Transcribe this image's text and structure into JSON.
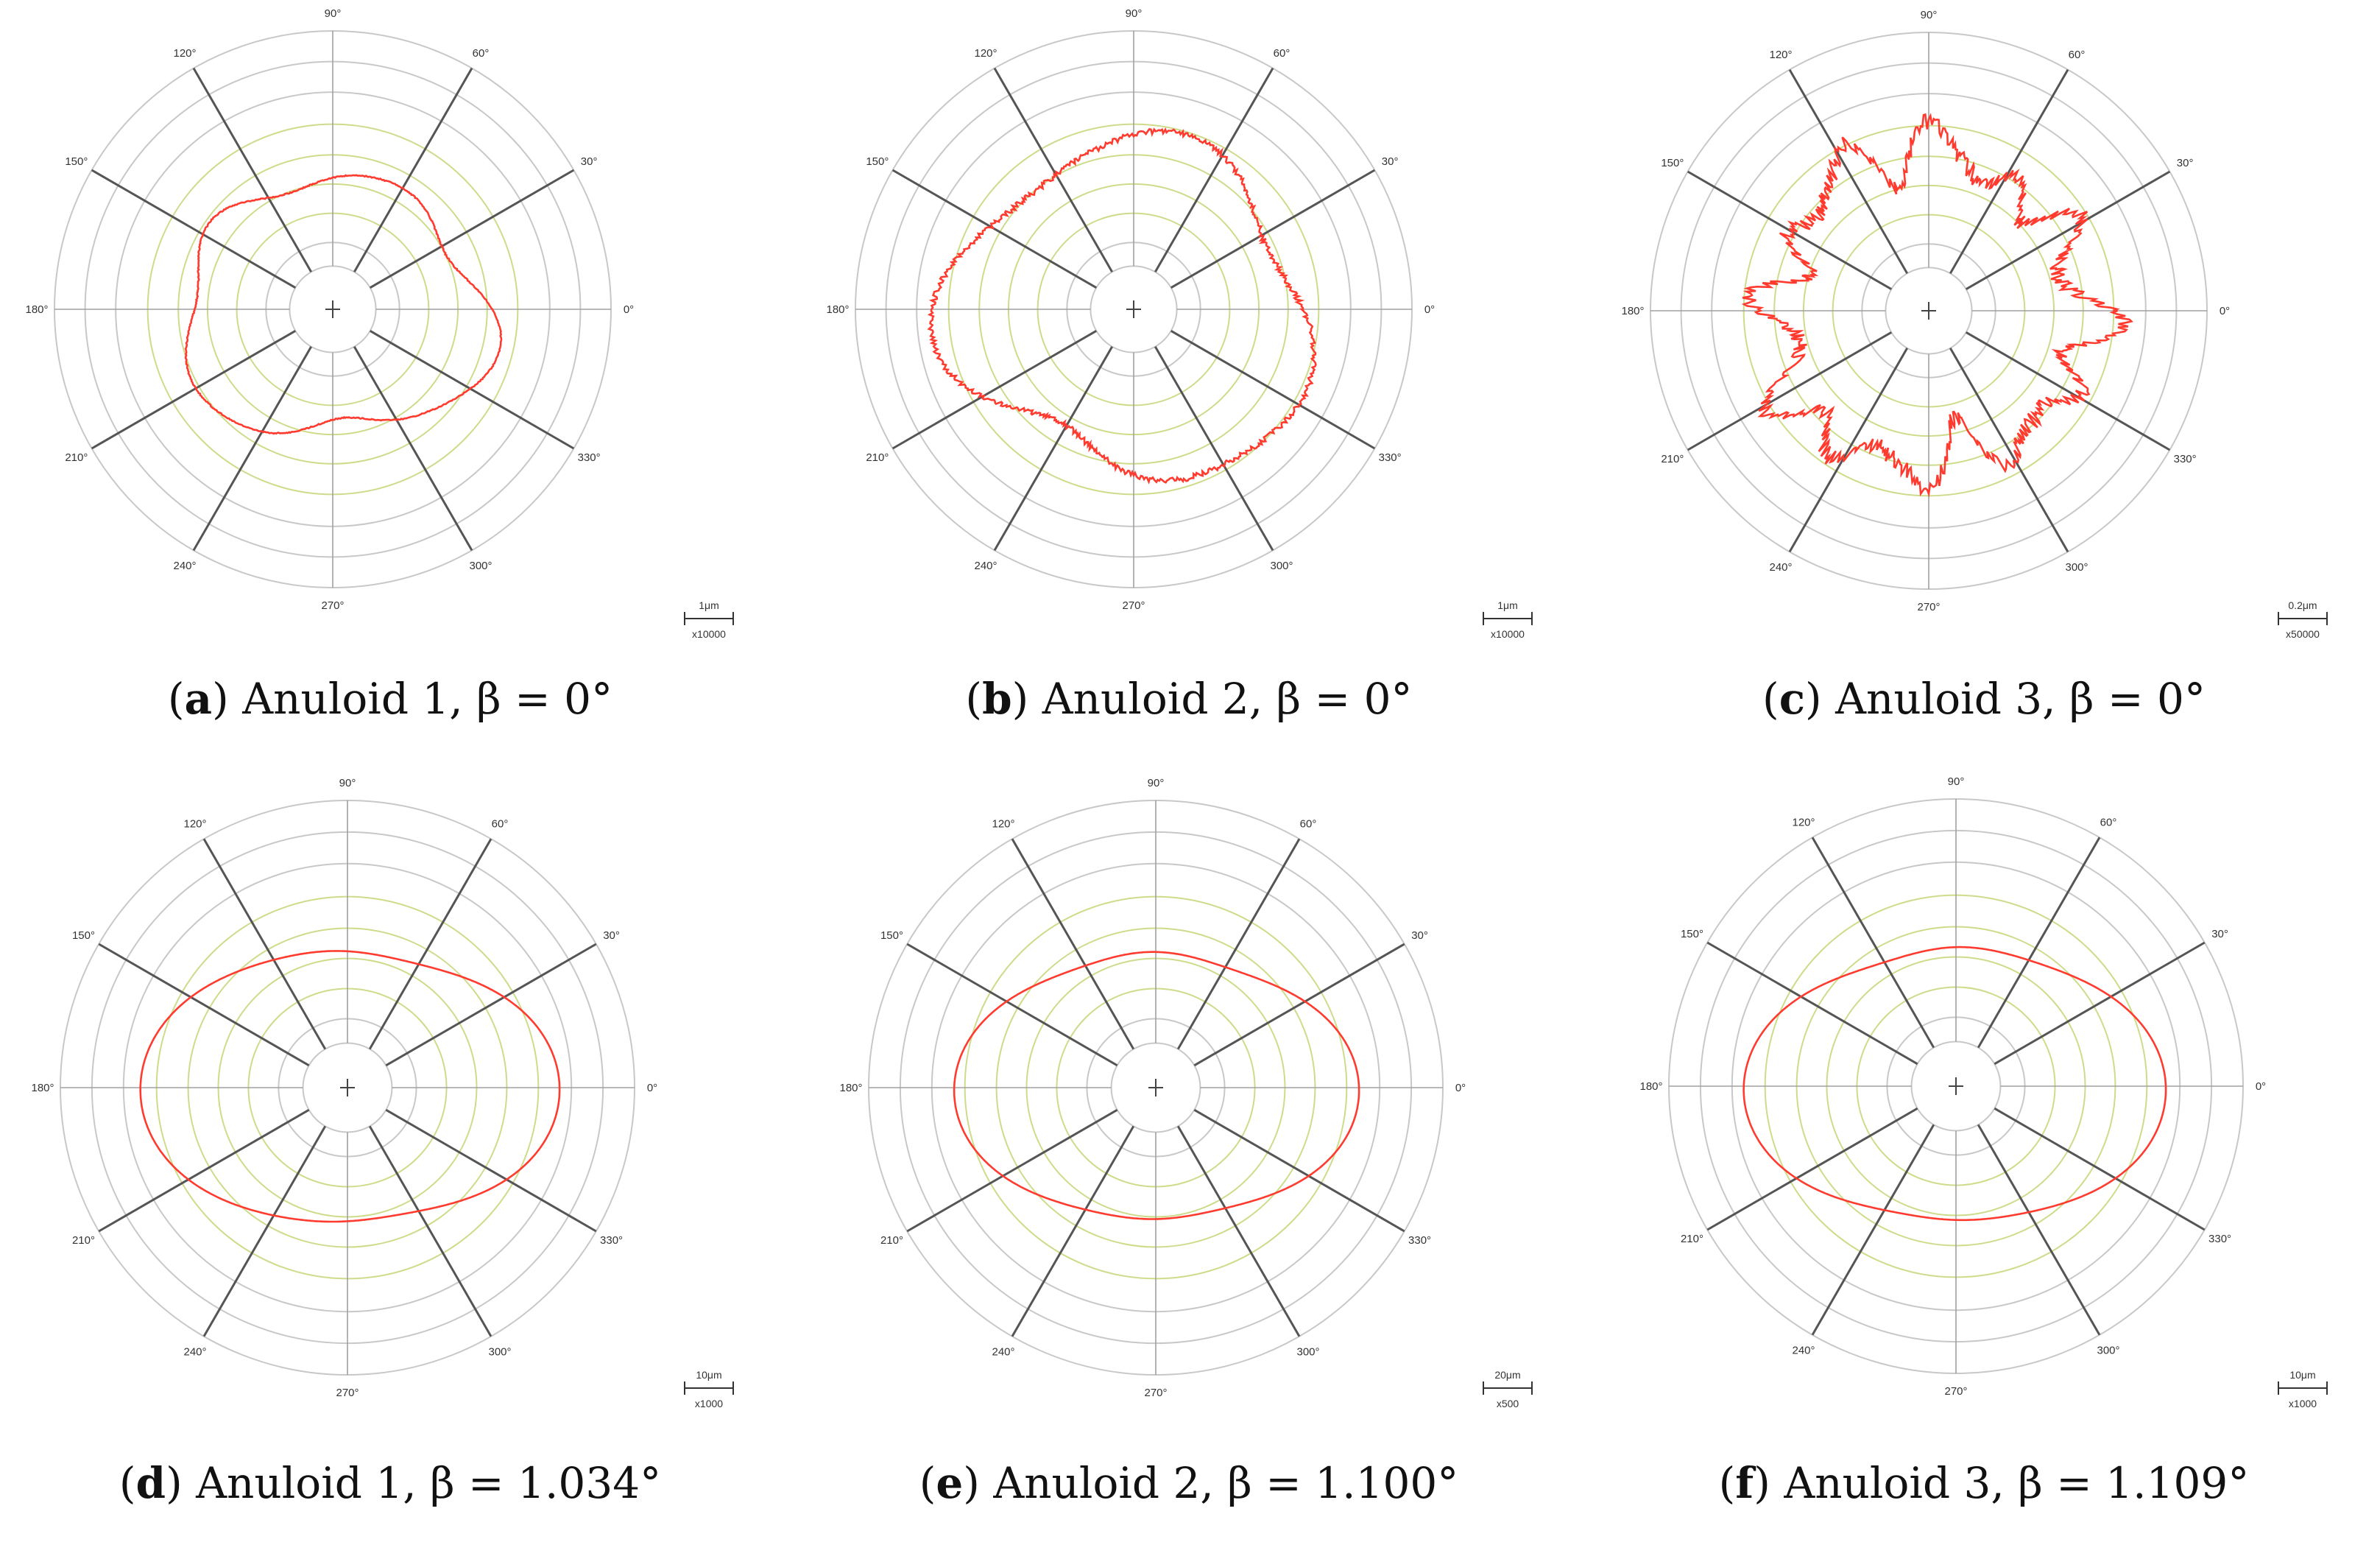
{
  "chart_data": [
    {
      "type": "polar",
      "caption": {
        "letter": "a",
        "text": "Anuloid 1, β = 0°"
      },
      "angle_ticks": [
        "0°",
        "30°",
        "60°",
        "90°",
        "120°",
        "150°",
        "180°",
        "210°",
        "240°",
        "270°",
        "300°",
        "330°"
      ],
      "scale": {
        "length": "1μm",
        "magnification": "x10000"
      },
      "profile": {
        "base": 0.5,
        "harmonics": [
          [
            2,
            0.05,
            0.0
          ],
          [
            3,
            0.04,
            1.2
          ],
          [
            4,
            0.03,
            2.1
          ],
          [
            5,
            0.02,
            0.5
          ],
          [
            7,
            0.012,
            1.0
          ]
        ],
        "noise": 0.002
      },
      "colors": {
        "profile": "#ff3b2f",
        "inner_rings": "#cddc8a",
        "outer_rings": "#c8c8c8",
        "spokes": "#555555"
      }
    },
    {
      "type": "polar",
      "caption": {
        "letter": "b",
        "text": "Anuloid 2, β = 0°"
      },
      "angle_ticks": [
        "0°",
        "30°",
        "60°",
        "90°",
        "120°",
        "150°",
        "180°",
        "210°",
        "240°",
        "270°",
        "300°",
        "330°"
      ],
      "scale": {
        "length": "1μm",
        "magnification": "x10000"
      },
      "profile": {
        "base": 0.61,
        "harmonics": [
          [
            2,
            0.04,
            0.8
          ],
          [
            3,
            0.07,
            2.6
          ],
          [
            4,
            0.03,
            0.2
          ],
          [
            5,
            0.02,
            1.5
          ]
        ],
        "noise": 0.01
      },
      "colors": {
        "profile": "#ff3b2f",
        "inner_rings": "#cddc8a",
        "outer_rings": "#c8c8c8",
        "spokes": "#555555"
      }
    },
    {
      "type": "polar",
      "caption": {
        "letter": "c",
        "text": "Anuloid 3, β = 0°"
      },
      "angle_ticks": [
        "0°",
        "30°",
        "60°",
        "90°",
        "120°",
        "150°",
        "180°",
        "210°",
        "240°",
        "270°",
        "300°",
        "330°"
      ],
      "scale": {
        "length": "0.2μm",
        "magnification": "x50000"
      },
      "profile": {
        "base": 0.56,
        "harmonics": [
          [
            12,
            0.07,
            0.3
          ],
          [
            8,
            0.04,
            1.0
          ],
          [
            3,
            0.03,
            0.7
          ],
          [
            18,
            0.03,
            2.0
          ]
        ],
        "noise": 0.03
      },
      "colors": {
        "profile": "#ff3b2f",
        "inner_rings": "#cddc8a",
        "outer_rings": "#c8c8c8",
        "spokes": "#555555"
      }
    },
    {
      "type": "polar",
      "caption": {
        "letter": "d",
        "text": "Anuloid 1, β = 1.034°"
      },
      "angle_ticks": [
        "0°",
        "30°",
        "60°",
        "90°",
        "120°",
        "150°",
        "180°",
        "210°",
        "240°",
        "270°",
        "300°",
        "330°"
      ],
      "scale": {
        "length": "10μm",
        "magnification": "x1000"
      },
      "profile": {
        "base": 0.58,
        "harmonics": [
          [
            2,
            0.13,
            0.0
          ],
          [
            4,
            0.02,
            0.0
          ],
          [
            3,
            0.01,
            0.5
          ]
        ],
        "noise": 0.0
      },
      "colors": {
        "profile": "#ff3b2f",
        "inner_rings": "#cddc8a",
        "outer_rings": "#c8c8c8",
        "spokes": "#555555"
      }
    },
    {
      "type": "polar",
      "caption": {
        "letter": "e",
        "text": "Anuloid 2, β = 1.100°"
      },
      "angle_ticks": [
        "0°",
        "30°",
        "60°",
        "90°",
        "120°",
        "150°",
        "180°",
        "210°",
        "240°",
        "270°",
        "300°",
        "330°"
      ],
      "scale": {
        "length": "20μm",
        "magnification": "x500"
      },
      "profile": {
        "base": 0.56,
        "harmonics": [
          [
            2,
            0.12,
            0.0
          ],
          [
            4,
            0.025,
            0.0
          ],
          [
            3,
            0.008,
            1.2
          ]
        ],
        "noise": 0.0
      },
      "colors": {
        "profile": "#ff3b2f",
        "inner_rings": "#cddc8a",
        "outer_rings": "#c8c8c8",
        "spokes": "#555555"
      }
    },
    {
      "type": "polar",
      "caption": {
        "letter": "f",
        "text": "Anuloid 3, β = 1.109°"
      },
      "angle_ticks": [
        "0°",
        "30°",
        "60°",
        "90°",
        "120°",
        "150°",
        "180°",
        "210°",
        "240°",
        "270°",
        "300°",
        "330°"
      ],
      "scale": {
        "length": "10μm",
        "magnification": "x1000"
      },
      "profile": {
        "base": 0.58,
        "harmonics": [
          [
            2,
            0.13,
            0.0
          ],
          [
            4,
            0.025,
            0.0
          ],
          [
            3,
            0.01,
            2.0
          ]
        ],
        "noise": 0.0
      },
      "colors": {
        "profile": "#ff3b2f",
        "inner_rings": "#cddc8a",
        "outer_rings": "#c8c8c8",
        "spokes": "#555555"
      }
    }
  ]
}
